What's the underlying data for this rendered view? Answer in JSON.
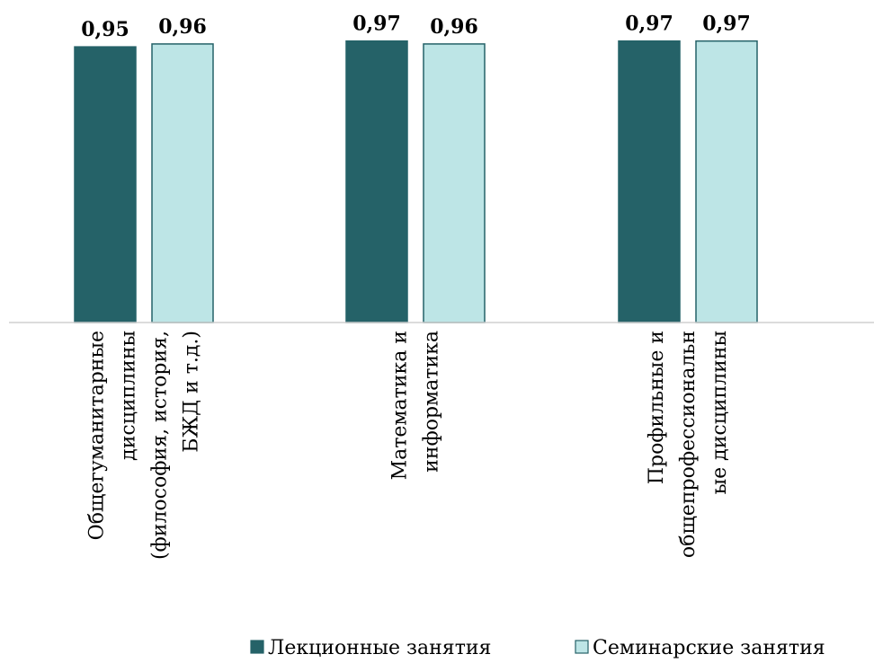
{
  "chart_data": {
    "type": "bar",
    "title": "",
    "xlabel": "",
    "ylabel": "",
    "categories": [
      [
        "Общегуманитарные",
        "дисциплины",
        "(философия, история,",
        "БЖД и т.д.)"
      ],
      [
        "Математика и",
        "информатика"
      ],
      [
        "Профильные и",
        "общепрофессиональн",
        "ые дисциплины"
      ]
    ],
    "series": [
      {
        "name": "Лекционные занятия",
        "color": "#256268",
        "values": [
          0.95,
          0.97,
          0.97
        ],
        "labels": [
          "0,95",
          "0,97",
          "0,97"
        ]
      },
      {
        "name": "Семинарские занятия",
        "color": "#BDE5E6",
        "values": [
          0.96,
          0.96,
          0.97
        ],
        "labels": [
          "0,96",
          "0,96",
          "0,97"
        ]
      }
    ],
    "ylim": [
      0,
      1
    ],
    "grid": false,
    "legend": "bottom-right"
  }
}
